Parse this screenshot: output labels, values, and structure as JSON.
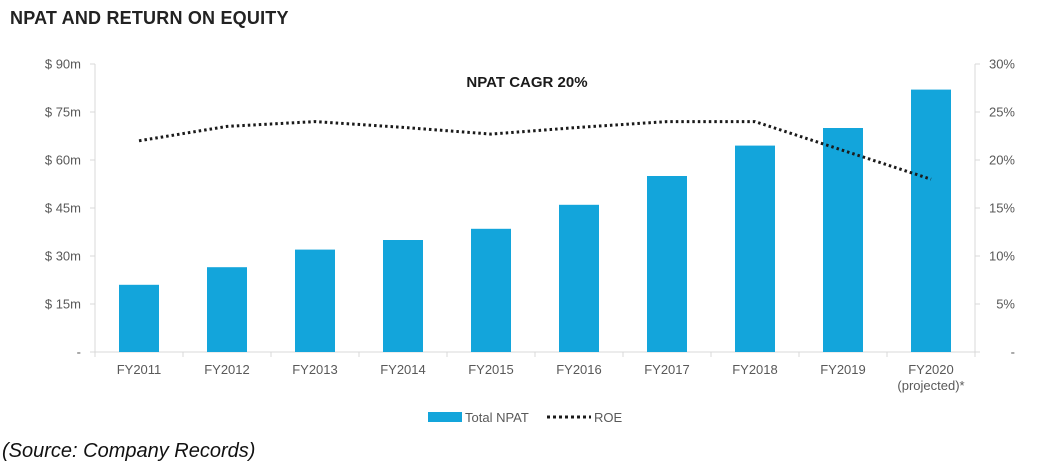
{
  "title": "NPAT AND RETURN ON EQUITY",
  "source": "(Source: Company Records)",
  "colors": {
    "bar": "#13a5db",
    "line": "#1a1a1a",
    "axis": "#d9d9d9",
    "text": "#595959"
  },
  "chart_data": {
    "type": "bar",
    "annotation": "NPAT CAGR 20%",
    "categories": [
      "FY2011",
      "FY2012",
      "FY2013",
      "FY2014",
      "FY2015",
      "FY2016",
      "FY2017",
      "FY2018",
      "FY2019",
      "FY2020"
    ],
    "category_sublabels": [
      "",
      "",
      "",
      "",
      "",
      "",
      "",
      "",
      "",
      "(projected)*"
    ],
    "series": [
      {
        "name": "Total NPAT",
        "type": "bar",
        "axis": "left",
        "values": [
          21,
          26.5,
          32,
          35,
          38.5,
          46,
          55,
          64.5,
          70,
          82
        ]
      },
      {
        "name": "ROE",
        "type": "line",
        "style": "dotted",
        "axis": "right",
        "values": [
          22,
          23.5,
          24,
          23.4,
          22.7,
          23.4,
          24,
          24,
          21,
          18
        ]
      }
    ],
    "y_left": {
      "min": 0,
      "max": 90,
      "ticks": [
        0,
        15,
        30,
        45,
        60,
        75,
        90
      ],
      "tick_labels": [
        "-",
        "$ 15m",
        "$ 30m",
        "$ 45m",
        "$ 60m",
        "$ 75m",
        "$ 90m"
      ]
    },
    "y_right": {
      "min": 0,
      "max": 30,
      "ticks": [
        0,
        5,
        10,
        15,
        20,
        25,
        30
      ],
      "tick_labels": [
        "-",
        "5%",
        "10%",
        "15%",
        "20%",
        "25%",
        "30%"
      ]
    },
    "legend": {
      "position": "bottom",
      "entries": [
        "Total NPAT",
        "ROE"
      ]
    }
  }
}
